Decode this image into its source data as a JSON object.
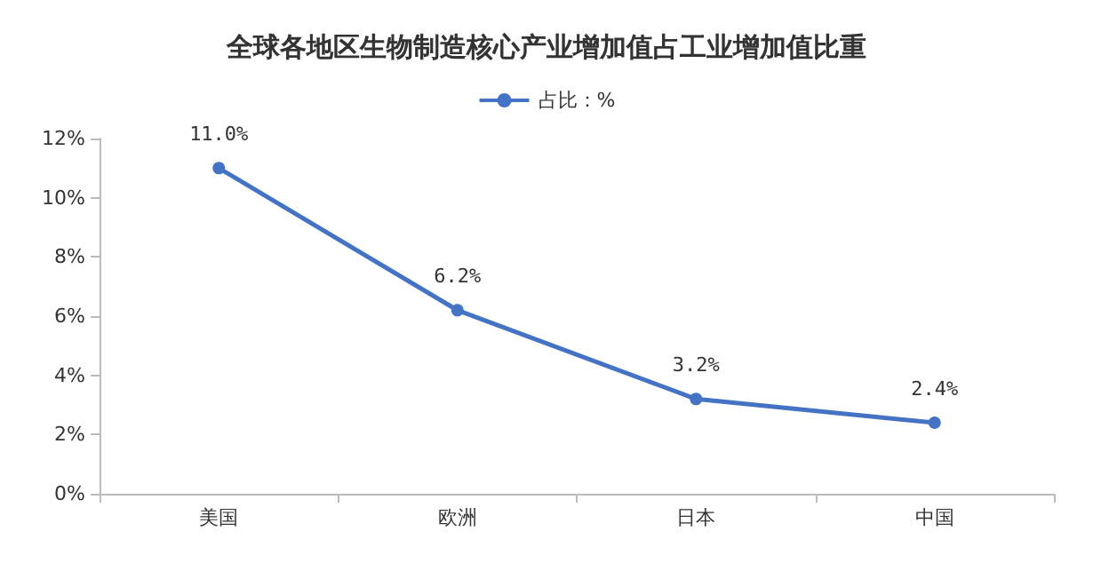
{
  "chart_data": {
    "type": "line",
    "title": "全球各地区生物制造核心产业增加值占工业增加值比重",
    "categories": [
      "美国",
      "欧洲",
      "日本",
      "中国"
    ],
    "series": [
      {
        "name": "占比：%",
        "color": "#4472c4",
        "values": [
          11.0,
          6.2,
          3.2,
          2.4
        ],
        "value_labels": [
          "11.0%",
          "6.2%",
          "3.2%",
          "2.4%"
        ]
      }
    ],
    "ylim": [
      0,
      12
    ],
    "yticks": [
      {
        "value": 0,
        "label": "0%"
      },
      {
        "value": 2,
        "label": "2%"
      },
      {
        "value": 4,
        "label": "4%"
      },
      {
        "value": 6,
        "label": "6%"
      },
      {
        "value": 8,
        "label": "8%"
      },
      {
        "value": 10,
        "label": "10%"
      },
      {
        "value": 12,
        "label": "12%"
      }
    ],
    "grid": false,
    "legend": "top",
    "marker": "circle",
    "line_style": "solid"
  }
}
